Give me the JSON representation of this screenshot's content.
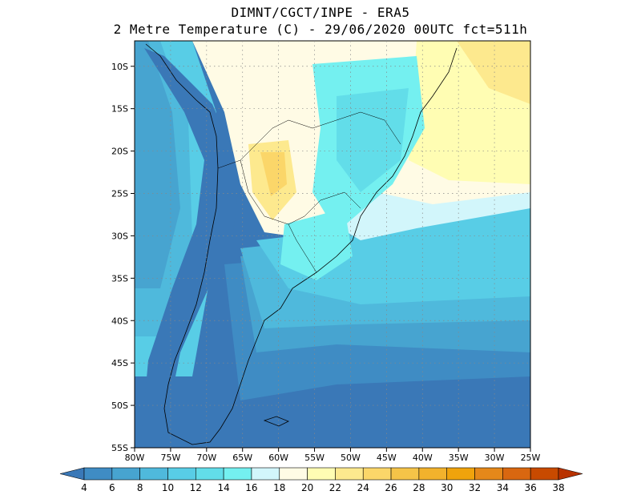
{
  "header": {
    "line1": "DIMNT/CGCT/INPE -  ERA5",
    "line2": "2 Metre Temperature (C) -  29/06/2020 00UTC fct=511h"
  },
  "map": {
    "lon_range": [
      -80,
      -25
    ],
    "lat_range": [
      -55,
      -7
    ],
    "lon_ticks": [
      {
        "value": -80,
        "label": "80W"
      },
      {
        "value": -75,
        "label": "75W"
      },
      {
        "value": -70,
        "label": "70W"
      },
      {
        "value": -65,
        "label": "65W"
      },
      {
        "value": -60,
        "label": "60W"
      },
      {
        "value": -55,
        "label": "55W"
      },
      {
        "value": -50,
        "label": "50W"
      },
      {
        "value": -45,
        "label": "45W"
      },
      {
        "value": -40,
        "label": "40W"
      },
      {
        "value": -35,
        "label": "35W"
      },
      {
        "value": -30,
        "label": "30W"
      },
      {
        "value": -25,
        "label": "25W"
      }
    ],
    "lat_ticks": [
      {
        "value": -10,
        "label": "10S"
      },
      {
        "value": -15,
        "label": "15S"
      },
      {
        "value": -20,
        "label": "20S"
      },
      {
        "value": -25,
        "label": "25S"
      },
      {
        "value": -30,
        "label": "30S"
      },
      {
        "value": -35,
        "label": "35S"
      },
      {
        "value": -40,
        "label": "40S"
      },
      {
        "value": -45,
        "label": "45S"
      },
      {
        "value": -50,
        "label": "50S"
      },
      {
        "value": -55,
        "label": "55S"
      }
    ],
    "grid": "dotted"
  },
  "colorbar": {
    "levels": [
      "4",
      "6",
      "8",
      "10",
      "12",
      "14",
      "16",
      "18",
      "20",
      "22",
      "24",
      "26",
      "28",
      "30",
      "32",
      "34",
      "36",
      "38"
    ],
    "colors": [
      "#3a78b7",
      "#3f8cc4",
      "#47a4d0",
      "#4fb9dc",
      "#58cde6",
      "#62dde9",
      "#74f0f0",
      "#d2f6fb",
      "#fffbe5",
      "#fffdb3",
      "#fde98e",
      "#fbd669",
      "#f5c448",
      "#f2b22c",
      "#f0a30c",
      "#e5881a",
      "#d96710",
      "#c84a00",
      "#b83200"
    ]
  }
}
